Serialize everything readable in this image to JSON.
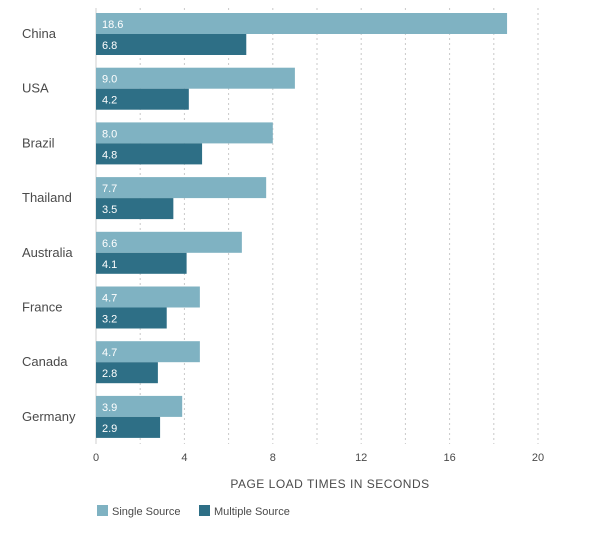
{
  "chart_data": {
    "type": "bar",
    "orientation": "horizontal",
    "categories": [
      "China",
      "USA",
      "Brazil",
      "Thailand",
      "Australia",
      "France",
      "Canada",
      "Germany"
    ],
    "series": [
      {
        "name": "Single Source",
        "values": [
          18.6,
          9.0,
          8.0,
          7.7,
          6.6,
          4.7,
          4.7,
          3.9
        ],
        "color": "#7fb2c2"
      },
      {
        "name": "Multiple Source",
        "values": [
          6.8,
          4.2,
          4.8,
          3.5,
          4.1,
          3.2,
          2.8,
          2.9
        ],
        "color": "#2e6f86"
      }
    ],
    "value_labels": [
      [
        "18.6",
        "9.0",
        "8.0",
        "7.7",
        "6.6",
        "4.7",
        "4.7",
        "3.9"
      ],
      [
        "6.8",
        "4.2",
        "4.8",
        "3.5",
        "4.1",
        "3.2",
        "2.8",
        "2.9"
      ]
    ],
    "xlabel": "PAGE LOAD TIMES IN SECONDS",
    "xlim": [
      0,
      20
    ],
    "xticks": [
      0,
      4,
      8,
      12,
      16,
      20
    ],
    "xtick_labels": [
      "0",
      "4",
      "8",
      "12",
      "16",
      "20"
    ],
    "grid": "vertical-dashed",
    "legend_position": "bottom-left"
  }
}
